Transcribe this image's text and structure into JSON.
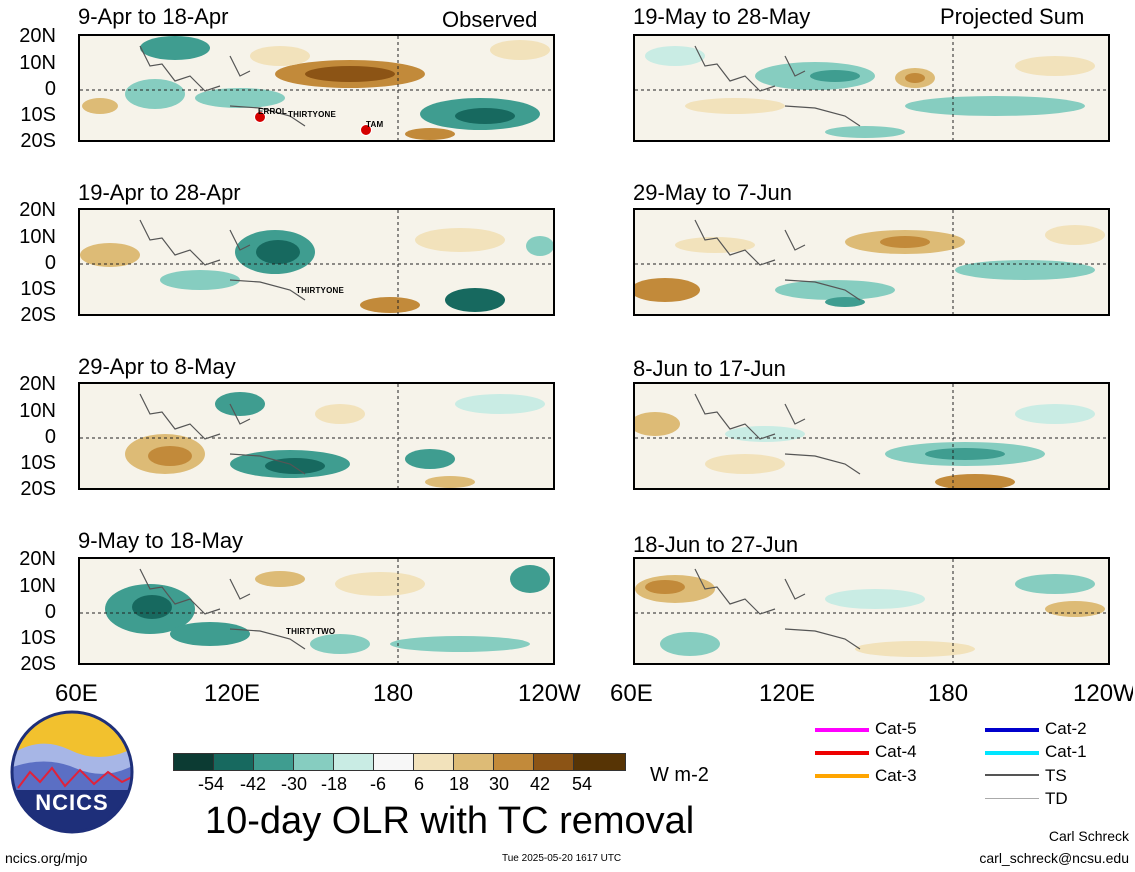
{
  "header": {
    "observed_label": "Observed",
    "projected_label": "Projected Sum"
  },
  "lat_labels": [
    "20N",
    "10N",
    "0",
    "10S",
    "20S"
  ],
  "lon_labels": [
    "60E",
    "120E",
    "180",
    "120W"
  ],
  "panels_left": [
    {
      "title": "9-Apr to 18-Apr"
    },
    {
      "title": "19-Apr to 28-Apr"
    },
    {
      "title": "29-Apr to 8-May"
    },
    {
      "title": "9-May to 18-May"
    }
  ],
  "panels_right": [
    {
      "title": "19-May to 28-May"
    },
    {
      "title": "29-May to 7-Jun"
    },
    {
      "title": "8-Jun to 17-Jun"
    },
    {
      "title": "18-Jun to 27-Jun"
    }
  ],
  "storms": {
    "errol": "ERROL",
    "thirtyone": "THIRTYONE",
    "tam": "TAM",
    "thirtyone_b": "THIRTYONE",
    "thirtytwo": "THIRTYTWO"
  },
  "colorbar": {
    "labels": [
      "-54",
      "-42",
      "-30",
      "-18",
      "-6",
      "6",
      "18",
      "30",
      "42",
      "54"
    ],
    "colors": [
      "#0c3b33",
      "#17695f",
      "#3f9d90",
      "#86cdc0",
      "#c9ece4",
      "#f7f7f7",
      "#f2e2bb",
      "#ddbb76",
      "#c28a3a",
      "#8c5415",
      "#573405"
    ],
    "units": "W m-2"
  },
  "title": "10-day OLR with TC removal",
  "legend": [
    {
      "label": "Cat-5",
      "color": "#ff00ff"
    },
    {
      "label": "Cat-4",
      "color": "#ee0000"
    },
    {
      "label": "Cat-3",
      "color": "#ffa500"
    },
    {
      "label": "Cat-2",
      "color": "#0000cc"
    },
    {
      "label": "Cat-1",
      "color": "#00e5ff"
    },
    {
      "label": "TS",
      "color": "#555555"
    },
    {
      "label": "TD",
      "color": "#aaaaaa"
    }
  ],
  "footer": {
    "logo_text": "NCICS",
    "site": "ncics.org/mjo",
    "timestamp": "Tue 2025-05-20 1617 UTC",
    "author": "Carl Schreck",
    "email": "carl_schreck@ncsu.edu"
  }
}
